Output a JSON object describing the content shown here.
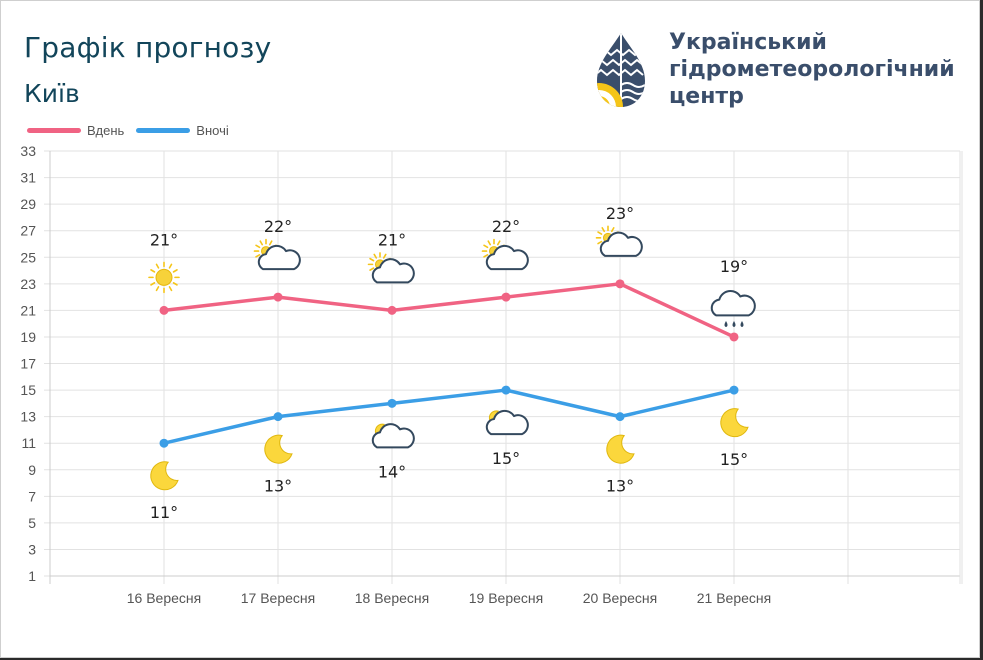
{
  "header": {
    "title": "Графік прогнозу",
    "city": "Київ",
    "org_lines": [
      "Український",
      "гідрометеорологічний",
      "центр"
    ]
  },
  "colors": {
    "day": "#f06383",
    "night": "#3b9ee6",
    "title": "#12455a",
    "org": "#3a4e6b"
  },
  "chart_data": {
    "type": "line",
    "categories": [
      "16 Вересня",
      "17 Вересня",
      "18 Вересня",
      "19 Вересня",
      "20 Вересня",
      "21 Вересня"
    ],
    "series": [
      {
        "name": "Вдень",
        "values": [
          21,
          22,
          21,
          22,
          23,
          19
        ]
      },
      {
        "name": "Вночі",
        "values": [
          11,
          13,
          14,
          15,
          13,
          15
        ]
      }
    ],
    "day_labels": [
      "21°",
      "22°",
      "21°",
      "22°",
      "23°",
      "19°"
    ],
    "night_labels": [
      "11°",
      "13°",
      "14°",
      "15°",
      "13°",
      "15°"
    ],
    "day_icons": [
      "sun-icon",
      "partly-cloudy-icon",
      "partly-cloudy-icon",
      "partly-cloudy-icon",
      "partly-cloudy-icon",
      "rain-cloud-icon"
    ],
    "night_icons": [
      "moon-icon",
      "moon-icon",
      "cloudy-night-icon",
      "cloudy-night-icon",
      "moon-icon",
      "moon-icon"
    ],
    "yticks": [
      1,
      3,
      5,
      7,
      9,
      11,
      13,
      15,
      17,
      19,
      21,
      23,
      25,
      27,
      29,
      31,
      33
    ],
    "ylim": [
      1,
      33
    ],
    "grid": true,
    "legend": "top-left"
  }
}
